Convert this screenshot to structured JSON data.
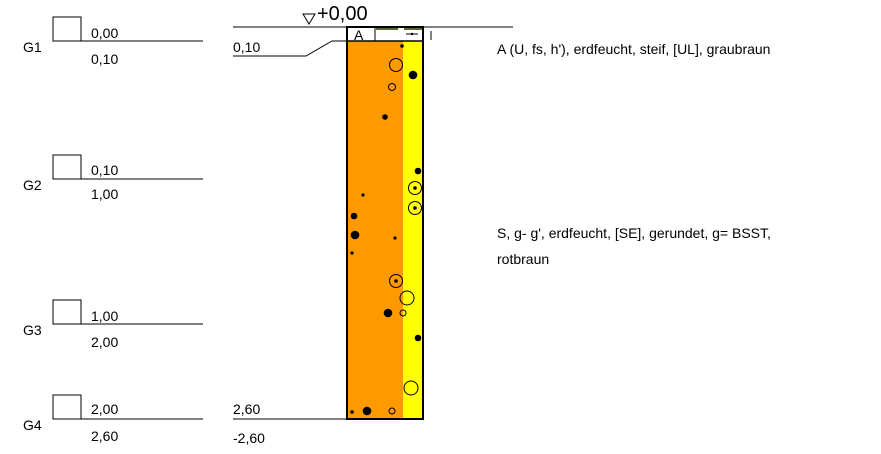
{
  "header": {
    "elevation_label": "+0,00"
  },
  "samples": [
    {
      "id": "G1",
      "top": "0,00",
      "bottom": "0,10"
    },
    {
      "id": "G2",
      "top": "0,10",
      "bottom": "1,00"
    },
    {
      "id": "G3",
      "top": "1,00",
      "bottom": "2,00"
    },
    {
      "id": "G4",
      "top": "2,00",
      "bottom": "2,60"
    }
  ],
  "depth_marks": {
    "layer_boundary": "0,10",
    "final_depth": "2,60",
    "final_elevation": "-2,60"
  },
  "layers": [
    {
      "symbol": "A",
      "description": "A (U, fs, h'), erdfeucht, steif, [UL], graubraun"
    },
    {
      "description_line1": "S, g- g', erdfeucht, [SE], gerundet, g= BSST,",
      "description_line2": "rotbraun"
    }
  ],
  "colors": {
    "sand": "#FF9900",
    "strip": "#FFFF00",
    "topsoil_top": "#556B2F",
    "topsoil_fill": "#FFFFFF",
    "line": "#000000"
  }
}
